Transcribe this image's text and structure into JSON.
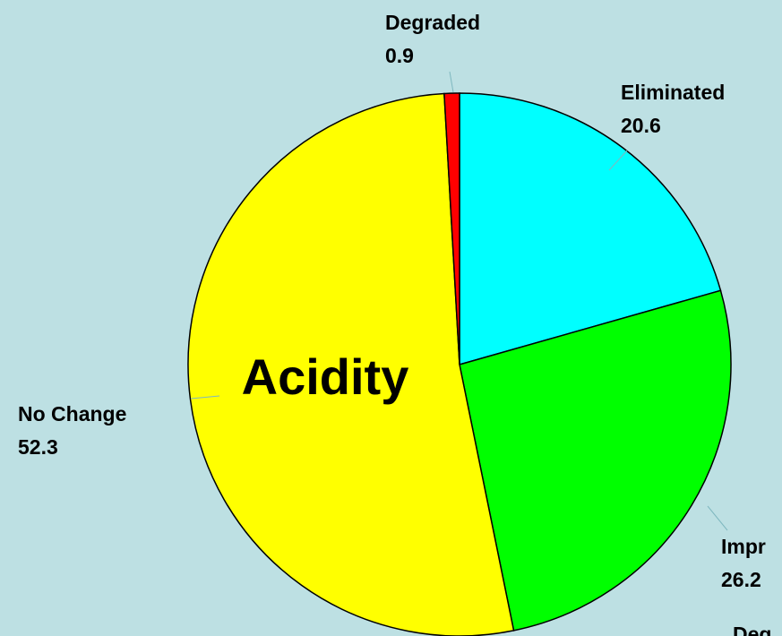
{
  "chart_data": {
    "type": "pie",
    "title": "Acidity",
    "categories": [
      "Eliminated",
      "Impr",
      "No Change",
      "Degraded"
    ],
    "values": [
      20.6,
      26.2,
      52.3,
      0.9
    ],
    "colors": [
      "#00ffff",
      "#00ff00",
      "#ffff00",
      "#ff0000"
    ],
    "annotations": [
      "Deg"
    ]
  }
}
